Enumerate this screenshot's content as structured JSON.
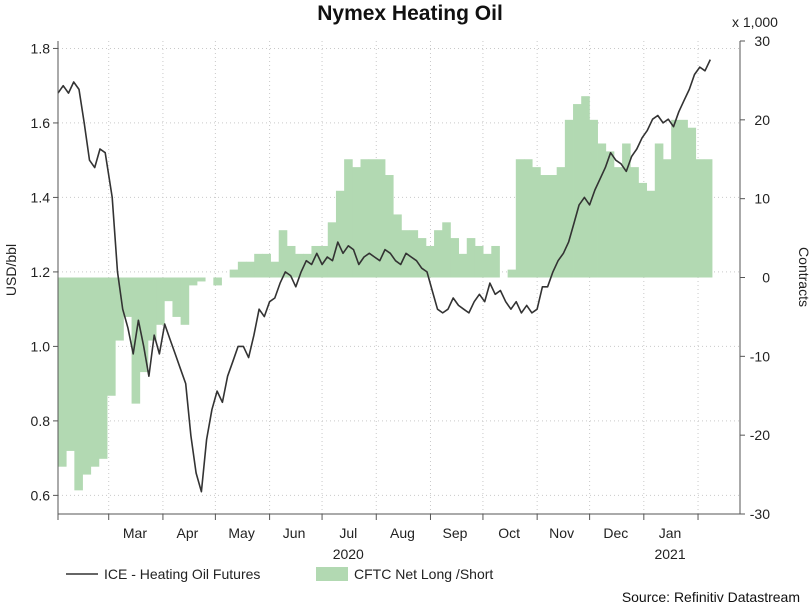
{
  "chart_data": {
    "type": "line",
    "title": "Nymex Heating Oil",
    "source": "Source: Refinitiv Datastream",
    "y_left": {
      "label": "USD/bbl",
      "range": [
        0.55,
        1.82
      ],
      "ticks": [
        "0.6",
        "0.8",
        "1.0",
        "1.2",
        "1.4",
        "1.6",
        "1.8"
      ],
      "tick_values": [
        0.6,
        0.8,
        1.0,
        1.2,
        1.4,
        1.6,
        1.8
      ]
    },
    "y_right": {
      "label": "Contracts",
      "multiplier": "x 1,000",
      "range": [
        -30,
        30
      ],
      "ticks": [
        "-30",
        "-20",
        "-10",
        "0",
        "10",
        "20",
        "30"
      ],
      "tick_values": [
        -30,
        -20,
        -10,
        0,
        10,
        20,
        30
      ]
    },
    "x_axis": {
      "range": [
        "2020-02-01",
        "2021-02-25"
      ],
      "month_ticks": [
        "2020-02-01",
        "2020-03-01",
        "2020-04-01",
        "2020-05-01",
        "2020-06-01",
        "2020-07-01",
        "2020-08-01",
        "2020-09-01",
        "2020-10-01",
        "2020-11-01",
        "2020-12-01",
        "2021-01-01",
        "2021-02-01"
      ],
      "month_labels": [
        {
          "text": "Mar",
          "date": "2020-03-16"
        },
        {
          "text": "Apr",
          "date": "2020-04-15"
        },
        {
          "text": "May",
          "date": "2020-05-16"
        },
        {
          "text": "Jun",
          "date": "2020-06-15"
        },
        {
          "text": "Jul",
          "date": "2020-07-16"
        },
        {
          "text": "Aug",
          "date": "2020-08-16"
        },
        {
          "text": "Sep",
          "date": "2020-09-15"
        },
        {
          "text": "Oct",
          "date": "2020-10-16"
        },
        {
          "text": "Nov",
          "date": "2020-11-15"
        },
        {
          "text": "Dec",
          "date": "2020-12-16"
        },
        {
          "text": "Jan",
          "date": "2021-01-16"
        }
      ],
      "year_labels": [
        {
          "text": "2020",
          "date": "2020-07-16"
        },
        {
          "text": "2021",
          "date": "2021-01-16"
        }
      ]
    },
    "grid": true,
    "legend": {
      "placement": "bottom-left"
    },
    "series": [
      {
        "name": "ICE - Heating Oil Futures",
        "kind": "line",
        "axis": "left",
        "color": "#333333",
        "points": [
          [
            "2020-02-01",
            1.68
          ],
          [
            "2020-02-04",
            1.7
          ],
          [
            "2020-02-07",
            1.68
          ],
          [
            "2020-02-10",
            1.71
          ],
          [
            "2020-02-13",
            1.69
          ],
          [
            "2020-02-16",
            1.6
          ],
          [
            "2020-02-19",
            1.5
          ],
          [
            "2020-02-22",
            1.48
          ],
          [
            "2020-02-25",
            1.53
          ],
          [
            "2020-02-28",
            1.52
          ],
          [
            "2020-03-03",
            1.4
          ],
          [
            "2020-03-06",
            1.2
          ],
          [
            "2020-03-09",
            1.1
          ],
          [
            "2020-03-12",
            1.05
          ],
          [
            "2020-03-15",
            0.98
          ],
          [
            "2020-03-18",
            1.07
          ],
          [
            "2020-03-21",
            1.0
          ],
          [
            "2020-03-24",
            0.92
          ],
          [
            "2020-03-27",
            1.03
          ],
          [
            "2020-03-30",
            0.98
          ],
          [
            "2020-04-02",
            1.06
          ],
          [
            "2020-04-05",
            1.02
          ],
          [
            "2020-04-08",
            0.98
          ],
          [
            "2020-04-11",
            0.94
          ],
          [
            "2020-04-14",
            0.9
          ],
          [
            "2020-04-17",
            0.76
          ],
          [
            "2020-04-20",
            0.66
          ],
          [
            "2020-04-23",
            0.61
          ],
          [
            "2020-04-26",
            0.75
          ],
          [
            "2020-04-29",
            0.83
          ],
          [
            "2020-05-02",
            0.88
          ],
          [
            "2020-05-05",
            0.85
          ],
          [
            "2020-05-08",
            0.92
          ],
          [
            "2020-05-11",
            0.96
          ],
          [
            "2020-05-14",
            1.0
          ],
          [
            "2020-05-17",
            1.0
          ],
          [
            "2020-05-20",
            0.97
          ],
          [
            "2020-05-23",
            1.03
          ],
          [
            "2020-05-26",
            1.1
          ],
          [
            "2020-05-29",
            1.08
          ],
          [
            "2020-06-01",
            1.12
          ],
          [
            "2020-06-04",
            1.13
          ],
          [
            "2020-06-07",
            1.17
          ],
          [
            "2020-06-10",
            1.2
          ],
          [
            "2020-06-13",
            1.19
          ],
          [
            "2020-06-16",
            1.16
          ],
          [
            "2020-06-19",
            1.2
          ],
          [
            "2020-06-22",
            1.23
          ],
          [
            "2020-06-25",
            1.22
          ],
          [
            "2020-06-28",
            1.25
          ],
          [
            "2020-07-01",
            1.22
          ],
          [
            "2020-07-04",
            1.24
          ],
          [
            "2020-07-07",
            1.23
          ],
          [
            "2020-07-10",
            1.28
          ],
          [
            "2020-07-13",
            1.25
          ],
          [
            "2020-07-16",
            1.27
          ],
          [
            "2020-07-19",
            1.26
          ],
          [
            "2020-07-22",
            1.22
          ],
          [
            "2020-07-25",
            1.24
          ],
          [
            "2020-07-28",
            1.25
          ],
          [
            "2020-07-31",
            1.24
          ],
          [
            "2020-08-03",
            1.23
          ],
          [
            "2020-08-06",
            1.26
          ],
          [
            "2020-08-09",
            1.25
          ],
          [
            "2020-08-12",
            1.23
          ],
          [
            "2020-08-15",
            1.22
          ],
          [
            "2020-08-18",
            1.25
          ],
          [
            "2020-08-21",
            1.24
          ],
          [
            "2020-08-24",
            1.23
          ],
          [
            "2020-08-27",
            1.21
          ],
          [
            "2020-08-30",
            1.2
          ],
          [
            "2020-09-02",
            1.15
          ],
          [
            "2020-09-05",
            1.1
          ],
          [
            "2020-09-08",
            1.09
          ],
          [
            "2020-09-11",
            1.1
          ],
          [
            "2020-09-14",
            1.13
          ],
          [
            "2020-09-17",
            1.11
          ],
          [
            "2020-09-20",
            1.1
          ],
          [
            "2020-09-23",
            1.09
          ],
          [
            "2020-09-26",
            1.12
          ],
          [
            "2020-09-29",
            1.14
          ],
          [
            "2020-10-02",
            1.12
          ],
          [
            "2020-10-05",
            1.17
          ],
          [
            "2020-10-08",
            1.14
          ],
          [
            "2020-10-11",
            1.15
          ],
          [
            "2020-10-14",
            1.12
          ],
          [
            "2020-10-17",
            1.1
          ],
          [
            "2020-10-20",
            1.12
          ],
          [
            "2020-10-23",
            1.09
          ],
          [
            "2020-10-26",
            1.11
          ],
          [
            "2020-10-29",
            1.09
          ],
          [
            "2020-11-01",
            1.1
          ],
          [
            "2020-11-04",
            1.16
          ],
          [
            "2020-11-07",
            1.16
          ],
          [
            "2020-11-10",
            1.2
          ],
          [
            "2020-11-13",
            1.23
          ],
          [
            "2020-11-16",
            1.25
          ],
          [
            "2020-11-19",
            1.28
          ],
          [
            "2020-11-22",
            1.33
          ],
          [
            "2020-11-25",
            1.38
          ],
          [
            "2020-11-28",
            1.4
          ],
          [
            "2020-12-01",
            1.38
          ],
          [
            "2020-12-04",
            1.42
          ],
          [
            "2020-12-07",
            1.45
          ],
          [
            "2020-12-10",
            1.48
          ],
          [
            "2020-12-13",
            1.52
          ],
          [
            "2020-12-16",
            1.5
          ],
          [
            "2020-12-19",
            1.49
          ],
          [
            "2020-12-22",
            1.47
          ],
          [
            "2020-12-25",
            1.51
          ],
          [
            "2020-12-28",
            1.53
          ],
          [
            "2020-12-31",
            1.56
          ],
          [
            "2021-01-03",
            1.58
          ],
          [
            "2021-01-06",
            1.61
          ],
          [
            "2021-01-09",
            1.62
          ],
          [
            "2021-01-12",
            1.6
          ],
          [
            "2021-01-15",
            1.61
          ],
          [
            "2021-01-18",
            1.59
          ],
          [
            "2021-01-21",
            1.63
          ],
          [
            "2021-01-24",
            1.66
          ],
          [
            "2021-01-27",
            1.69
          ],
          [
            "2021-01-30",
            1.73
          ],
          [
            "2021-02-02",
            1.75
          ],
          [
            "2021-02-05",
            1.74
          ],
          [
            "2021-02-08",
            1.77
          ]
        ]
      },
      {
        "name": "CFTC Net Long /Short",
        "kind": "step-area",
        "axis": "right",
        "color": "#b2d9b2",
        "weeks_start": "2020-02-01",
        "weeks_end": "2021-02-09",
        "weekly_values": [
          -24,
          -22,
          -27,
          -25,
          -24,
          -23,
          -15,
          -8,
          -5,
          -16,
          -12,
          -8,
          -6,
          -3,
          -5,
          -6,
          -1,
          -0.5,
          0,
          -1,
          0,
          1,
          2,
          2,
          3,
          3,
          2,
          6,
          4,
          3,
          3,
          4,
          4,
          7,
          11,
          15,
          14,
          15,
          15,
          15,
          13,
          8,
          6,
          6,
          5,
          4,
          6,
          7,
          5,
          3,
          5,
          4,
          3,
          4,
          0,
          1,
          15,
          15,
          14,
          13,
          13,
          14,
          20,
          22,
          23,
          20,
          17,
          16,
          14,
          17,
          14,
          12,
          11,
          17,
          15,
          20,
          20,
          19,
          15,
          15
        ]
      }
    ]
  }
}
